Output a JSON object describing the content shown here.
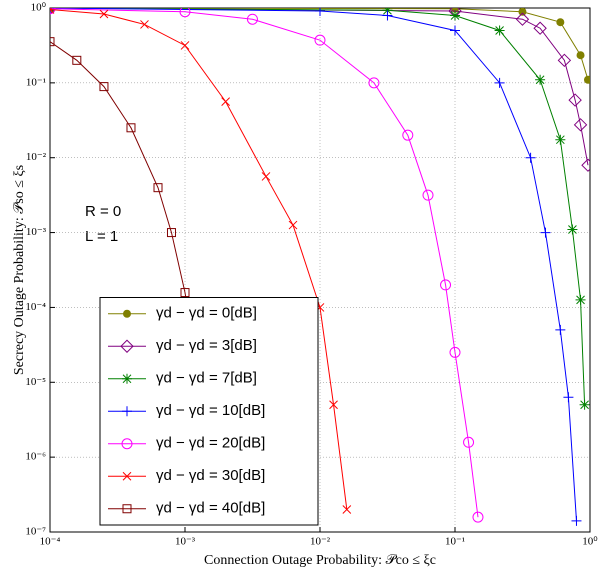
{
  "chart_data": {
    "type": "line",
    "xlabel": "Connection Outage Probability: 𝒫co ≤ ξc",
    "ylabel": "Secrecy Outage Probability: 𝒫so ≤ ξs",
    "annotations": [
      "R = 0",
      "L = 1"
    ],
    "xscale": "log",
    "yscale": "log",
    "grid": true,
    "legend": "lower left",
    "xlim": [
      0.0001,
      1
    ],
    "ylim": [
      1e-07,
      1
    ],
    "xticks": [
      {
        "value": 0.0001,
        "label": "10⁻⁴"
      },
      {
        "value": 0.001,
        "label": "10⁻³"
      },
      {
        "value": 0.01,
        "label": "10⁻²"
      },
      {
        "value": 0.1,
        "label": "10⁻¹"
      },
      {
        "value": 1,
        "label": "10⁰"
      }
    ],
    "yticks": [
      {
        "value": 1e-07,
        "label": "10⁻⁷"
      },
      {
        "value": 1e-06,
        "label": "10⁻⁶"
      },
      {
        "value": 1e-05,
        "label": "10⁻⁵"
      },
      {
        "value": 0.0001,
        "label": "10⁻⁴"
      },
      {
        "value": 0.001,
        "label": "10⁻³"
      },
      {
        "value": 0.01,
        "label": "10⁻²"
      },
      {
        "value": 0.1,
        "label": "10⁻¹"
      },
      {
        "value": 1,
        "label": "10⁰"
      }
    ],
    "series": [
      {
        "name": "γd − γd = 0[dB]",
        "color": "#808000",
        "marker": "dot",
        "x": [
          0.0001,
          0.1,
          0.316,
          0.603,
          0.851,
          0.966
        ],
        "values": [
          1,
          0.977,
          0.891,
          0.646,
          0.234,
          0.11
        ]
      },
      {
        "name": "γd − γd = 3[dB]",
        "color": "#800080",
        "marker": "diamond",
        "x": [
          0.0001,
          0.1,
          0.316,
          0.427,
          0.646,
          0.776,
          0.851,
          0.966
        ],
        "values": [
          1,
          0.912,
          0.708,
          0.537,
          0.2,
          0.0589,
          0.0275,
          0.00794
        ]
      },
      {
        "name": "γd − γd = 7[dB]",
        "color": "#008000",
        "marker": "star",
        "x": [
          0.0001,
          0.0316,
          0.1,
          0.214,
          0.427,
          0.603,
          0.741,
          0.851,
          0.912
        ],
        "values": [
          1,
          0.933,
          0.794,
          0.501,
          0.11,
          0.0174,
          0.0011,
          0.000126,
          5.01e-06
        ]
      },
      {
        "name": "γd − γd = 10[dB]",
        "color": "#0000ff",
        "marker": "plus",
        "x": [
          0.0001,
          0.01,
          0.0316,
          0.1,
          0.214,
          0.363,
          0.468,
          0.603,
          0.692,
          0.794
        ],
        "values": [
          1,
          0.912,
          0.794,
          0.501,
          0.1,
          0.01,
          0.001,
          5.01e-05,
          6.31e-06,
          1.41e-07
        ]
      },
      {
        "name": "γd − γd = 20[dB]",
        "color": "#ff00ff",
        "marker": "circle",
        "x": [
          0.0001,
          0.001,
          0.00316,
          0.01,
          0.0251,
          0.0447,
          0.0631,
          0.0851,
          0.1,
          0.126,
          0.148
        ],
        "values": [
          0.977,
          0.891,
          0.708,
          0.372,
          0.1,
          0.02,
          0.00316,
          0.0002,
          2.51e-05,
          1.58e-06,
          1.58e-07
        ]
      },
      {
        "name": "γd − γd = 30[dB]",
        "color": "#ff0000",
        "marker": "x",
        "x": [
          0.0001,
          0.000251,
          0.000501,
          0.001,
          0.002,
          0.00398,
          0.00631,
          0.01,
          0.0126,
          0.0158
        ],
        "values": [
          0.955,
          0.832,
          0.603,
          0.316,
          0.0562,
          0.00562,
          0.00126,
          0.0001,
          5.01e-06,
          2e-07
        ]
      },
      {
        "name": "γd − γd = 40[dB]",
        "color": "#800000",
        "marker": "square",
        "x": [
          0.0001,
          0.000158,
          0.000251,
          0.000398,
          0.000631,
          0.000794,
          0.001,
          0.00126,
          0.00158
        ],
        "values": [
          0.355,
          0.2,
          0.0891,
          0.0251,
          0.00398,
          0.001,
          0.000158,
          1.26e-05,
          3.98e-07
        ]
      }
    ]
  }
}
